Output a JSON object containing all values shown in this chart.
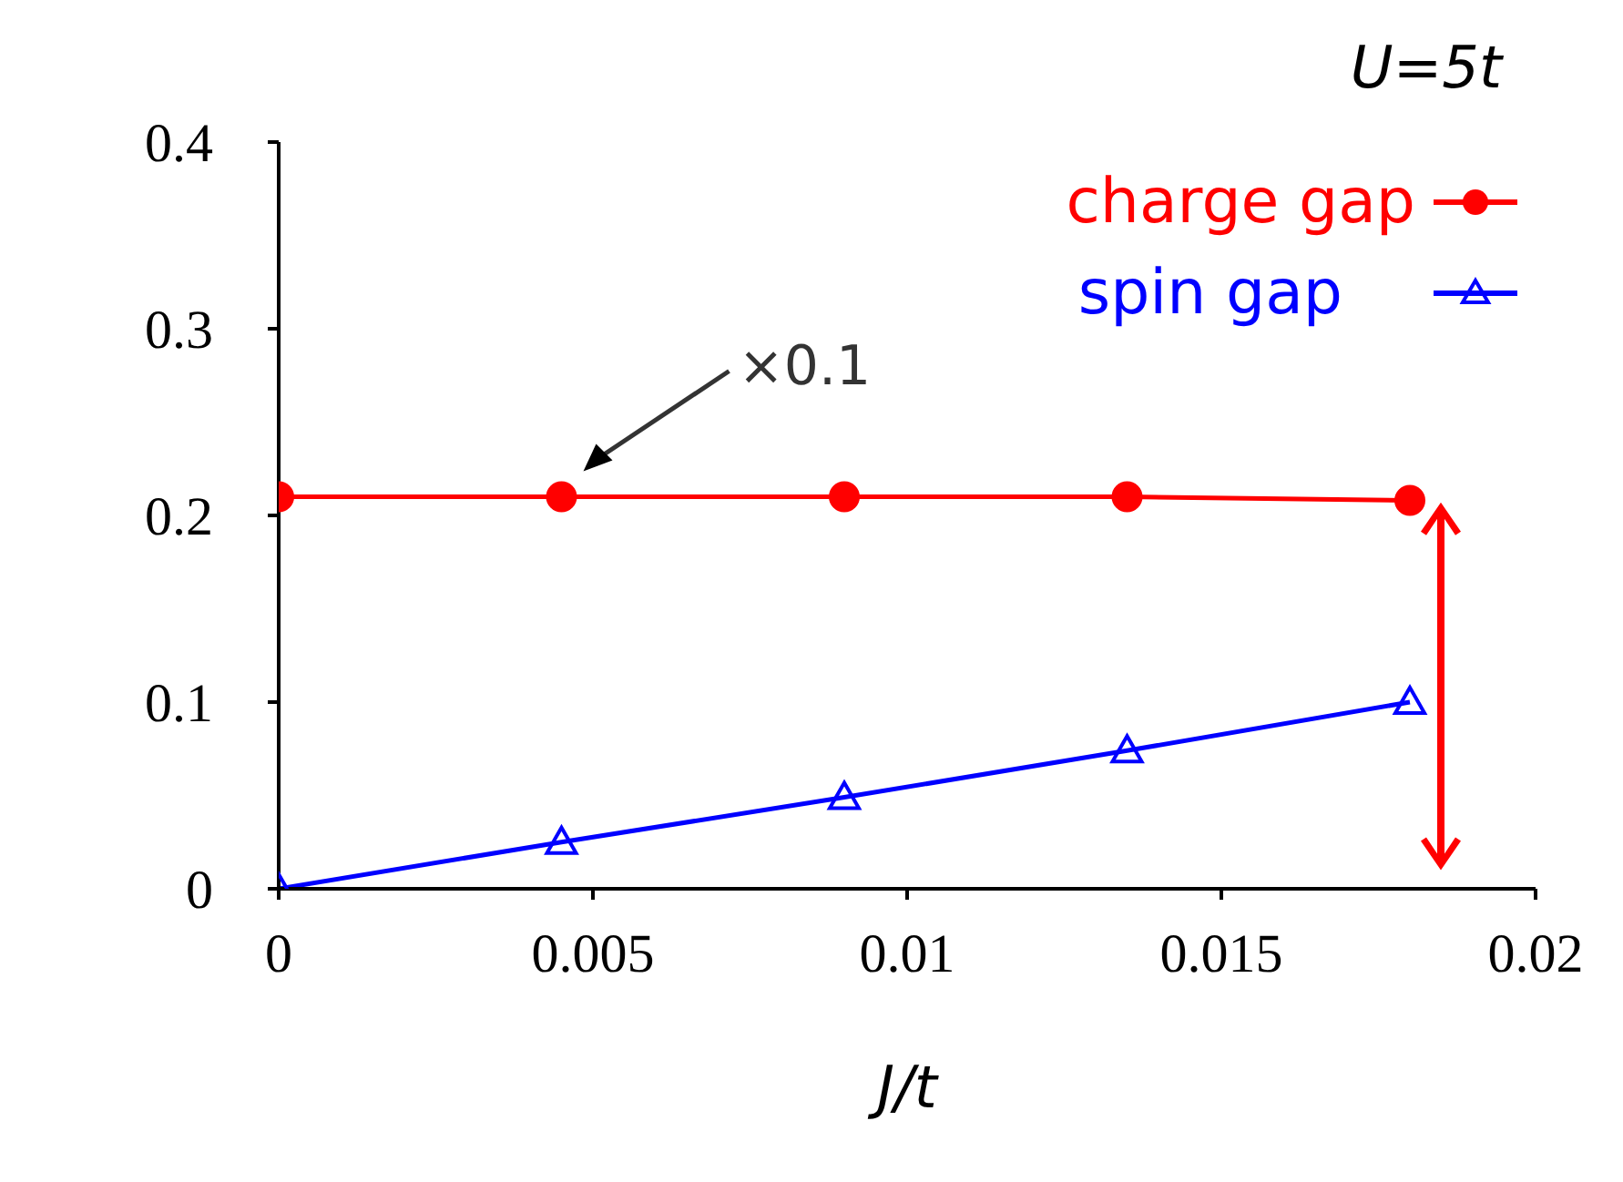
{
  "chart_data": {
    "type": "line",
    "xlabel": "J/t",
    "x": [
      0,
      0.0045,
      0.009,
      0.0135,
      0.018
    ],
    "series": [
      {
        "name": "charge gap",
        "color": "#ff0000",
        "values": [
          0.21,
          0.21,
          0.21,
          0.21,
          0.208
        ],
        "marker": "circle"
      },
      {
        "name": "spin gap",
        "color": "#0000ff",
        "values": [
          0,
          0.025,
          0.049,
          0.074,
          0.1
        ],
        "marker": "triangle"
      }
    ],
    "xlim": [
      0,
      0.02
    ],
    "xticks": [
      0,
      0.005,
      0.01,
      0.015,
      0.02
    ],
    "ylim": [
      0,
      0.4
    ],
    "yticks": [
      0,
      0.1,
      0.2,
      0.3,
      0.4
    ],
    "grid": false,
    "legend": "top right",
    "line_style": "solid",
    "annotations": [
      "U=5t",
      "×0.1"
    ]
  }
}
